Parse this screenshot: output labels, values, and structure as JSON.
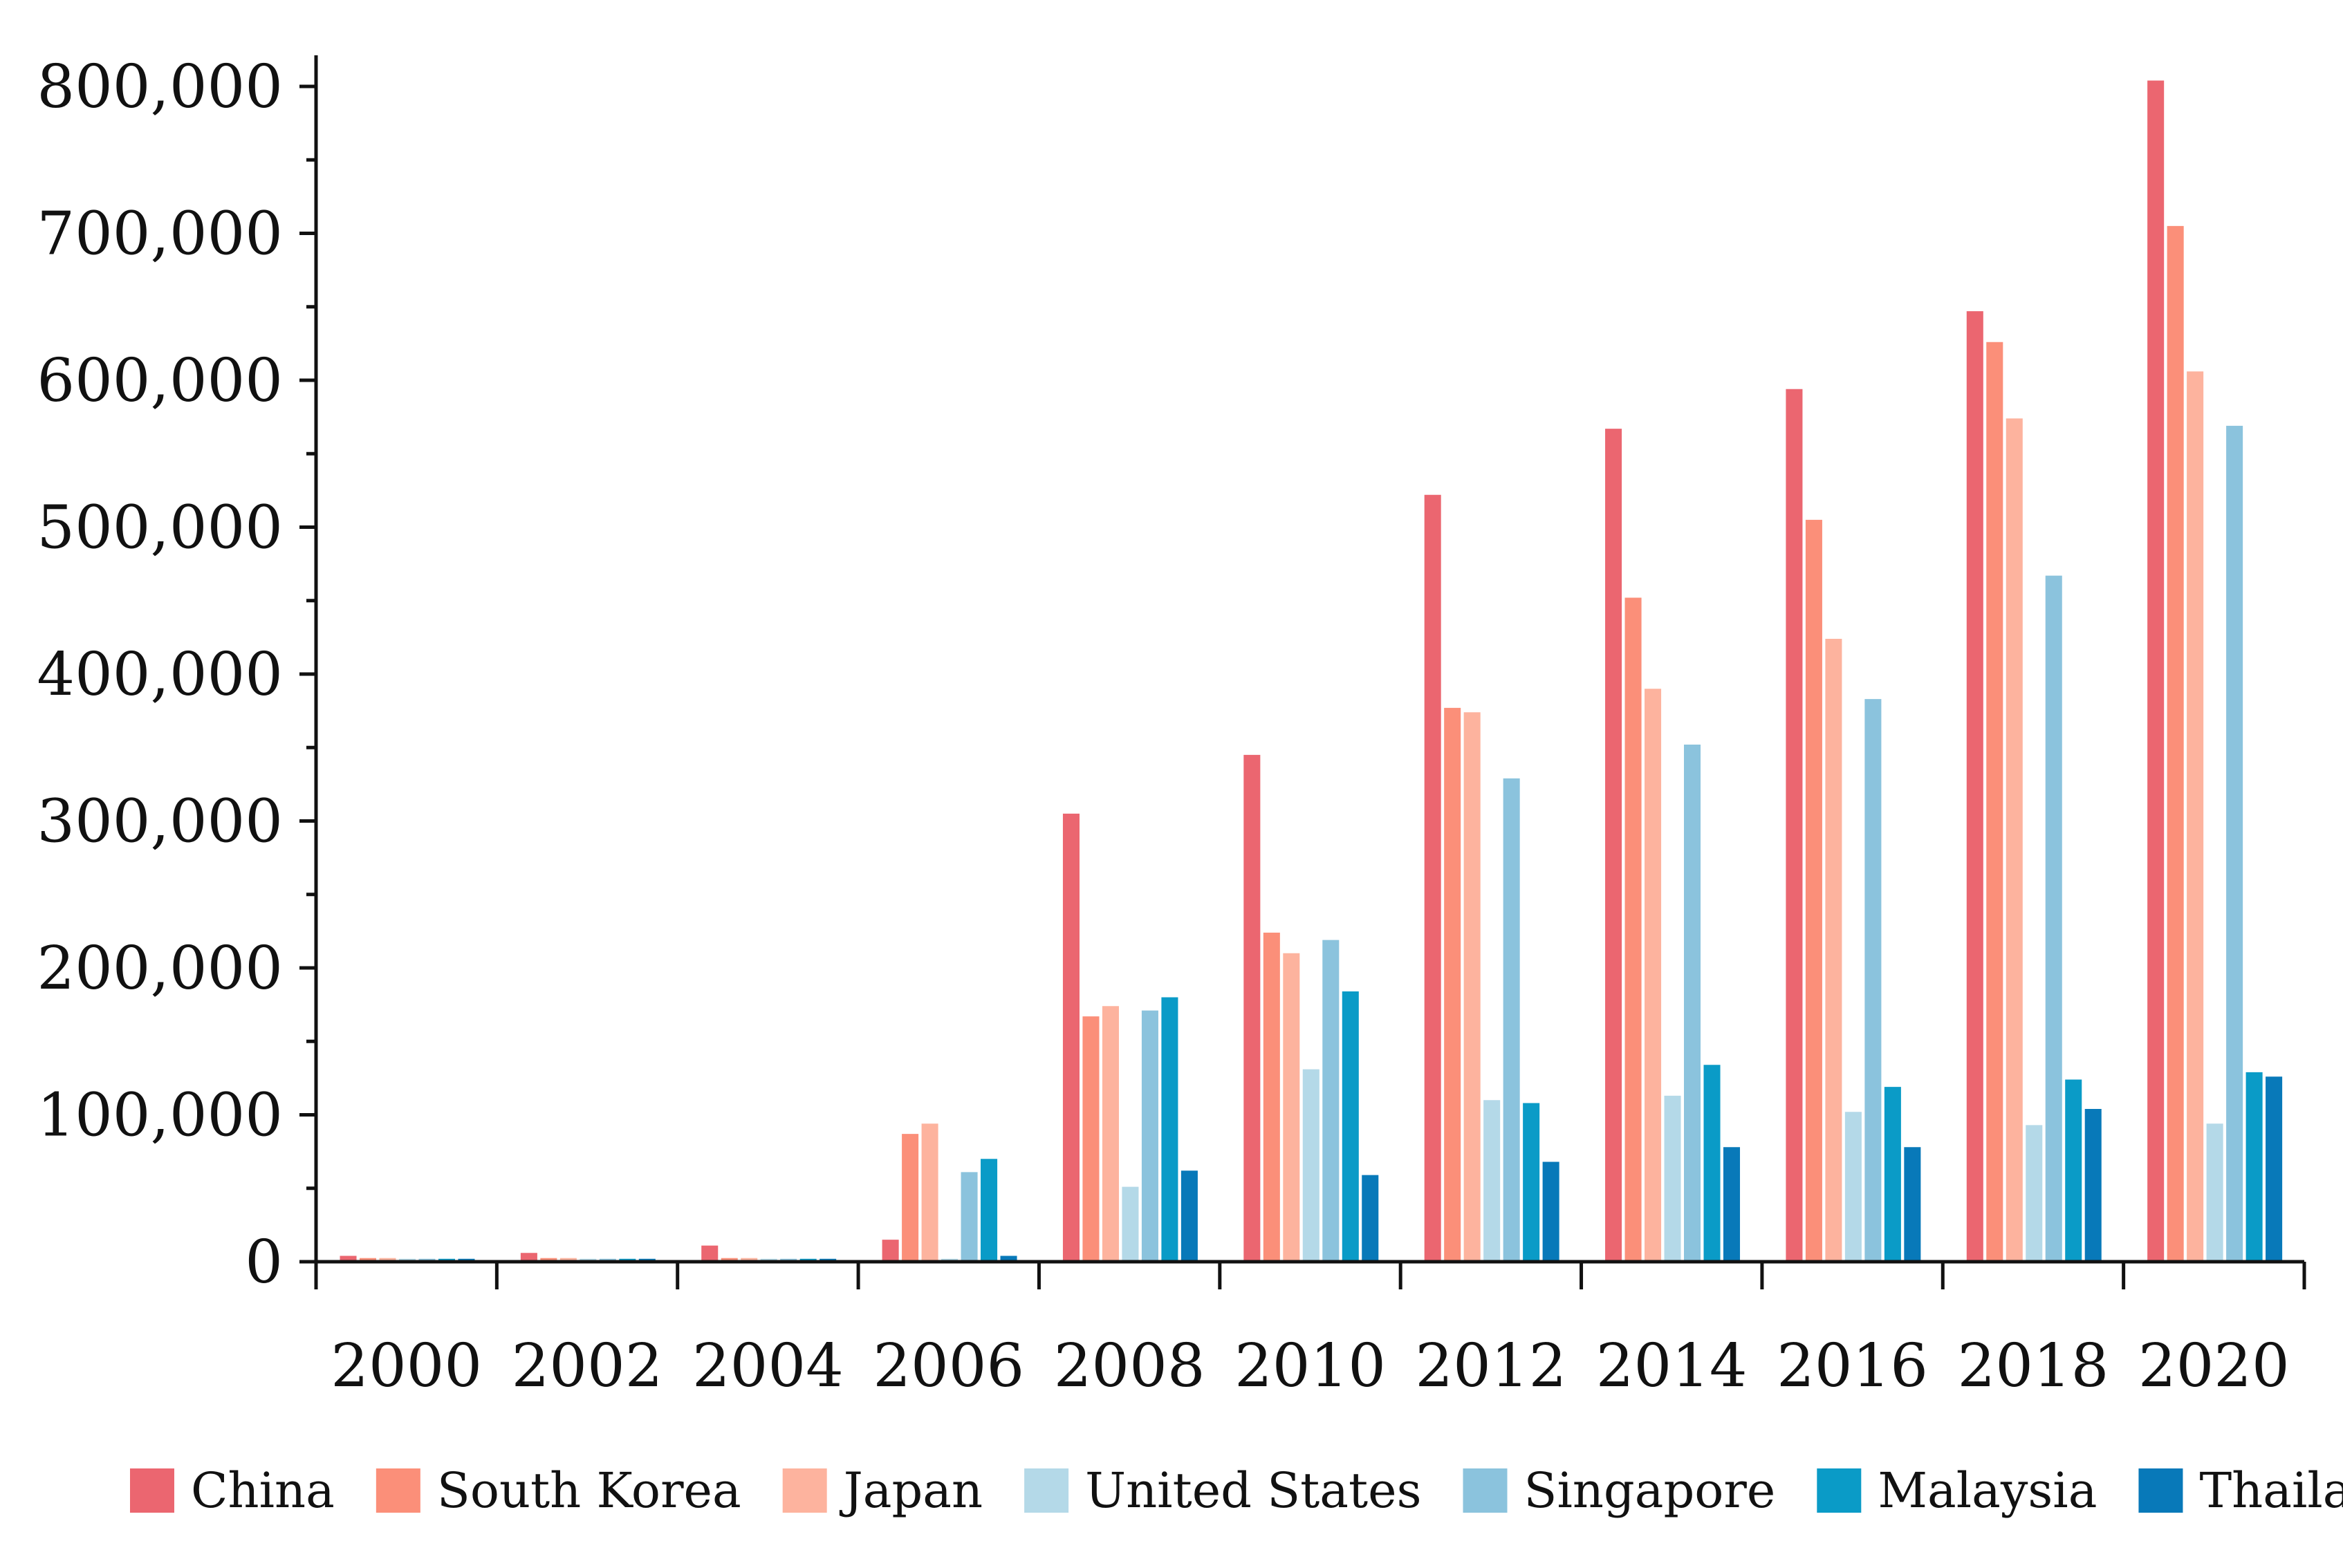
{
  "chart_data": {
    "type": "bar",
    "title": "",
    "xlabel": "",
    "ylabel": "",
    "ylim": [
      0,
      800000
    ],
    "grid": false,
    "legend_position": "bottom",
    "categories": [
      "2000",
      "2002",
      "2004",
      "2006",
      "2008",
      "2010",
      "2012",
      "2014",
      "2016",
      "2018",
      "2020"
    ],
    "y_ticks": [
      0,
      100000,
      200000,
      300000,
      400000,
      500000,
      600000,
      700000,
      800000
    ],
    "y_tick_labels": [
      "0",
      "100,000",
      "200,000",
      "300,000",
      "400,000",
      "500,000",
      "600,000",
      "700,000",
      "800,000"
    ],
    "series": [
      {
        "name": "China",
        "color": "#EB6670",
        "values": [
          4000,
          6000,
          11000,
          15000,
          305000,
          345000,
          522000,
          567000,
          594000,
          647000,
          804000
        ]
      },
      {
        "name": "South Korea",
        "color": "#FB8F79",
        "values": [
          2500,
          2500,
          2500,
          87000,
          167000,
          224000,
          377000,
          452000,
          505000,
          626000,
          705000
        ]
      },
      {
        "name": "Japan",
        "color": "#FDB39E",
        "values": [
          2500,
          2500,
          2500,
          94000,
          174000,
          210000,
          374000,
          390000,
          424000,
          574000,
          606000
        ]
      },
      {
        "name": "United States",
        "color": "#B4D9E8",
        "values": [
          2000,
          2000,
          2000,
          2000,
          51000,
          131000,
          110000,
          113000,
          102000,
          93000,
          94000
        ]
      },
      {
        "name": "Singapore",
        "color": "#8BC3DD",
        "values": [
          2000,
          2000,
          2000,
          61000,
          171000,
          219000,
          329000,
          352000,
          383000,
          467000,
          569000
        ]
      },
      {
        "name": "Malaysia",
        "color": "#0A9BC7",
        "values": [
          2000,
          2000,
          2000,
          70000,
          180000,
          184000,
          108000,
          134000,
          119000,
          124000,
          129000
        ]
      },
      {
        "name": "Thailand",
        "color": "#0879B9",
        "values": [
          2000,
          2000,
          2000,
          4000,
          62000,
          59000,
          68000,
          78000,
          78000,
          104000,
          126000
        ]
      }
    ]
  }
}
